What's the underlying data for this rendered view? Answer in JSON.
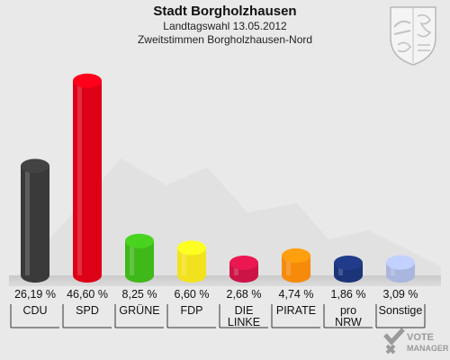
{
  "header": {
    "title": "Stadt Borgholzhausen",
    "subtitle1": "Landtagswahl 13.05.2012",
    "subtitle2": "Zweitstimmen Borgholzhausen-Nord"
  },
  "watermark": {
    "text1": "VOTE",
    "text2": "MANAGER"
  },
  "chart_data": {
    "type": "bar",
    "categories": [
      "CDU",
      "SPD",
      "GRÜNE",
      "FDP",
      "DIE LINKE",
      "PIRATE",
      "pro NRW",
      "Sonstige"
    ],
    "values": [
      26.19,
      46.6,
      8.25,
      6.6,
      2.68,
      4.74,
      1.86,
      3.09
    ],
    "value_labels": [
      "26,19 %",
      "46,60 %",
      "8,25 %",
      "6,60 %",
      "2,68 %",
      "4,74 %",
      "1,86 %",
      "3,09 %"
    ],
    "colors": [
      "#3a3a3a",
      "#dd0016",
      "#3fb81a",
      "#f2e21d",
      "#cc1446",
      "#f58a0b",
      "#1c3478",
      "#a9b6de"
    ],
    "ylim": [
      0,
      50
    ],
    "grid": false,
    "title": "",
    "xlabel": "",
    "ylabel": ""
  }
}
